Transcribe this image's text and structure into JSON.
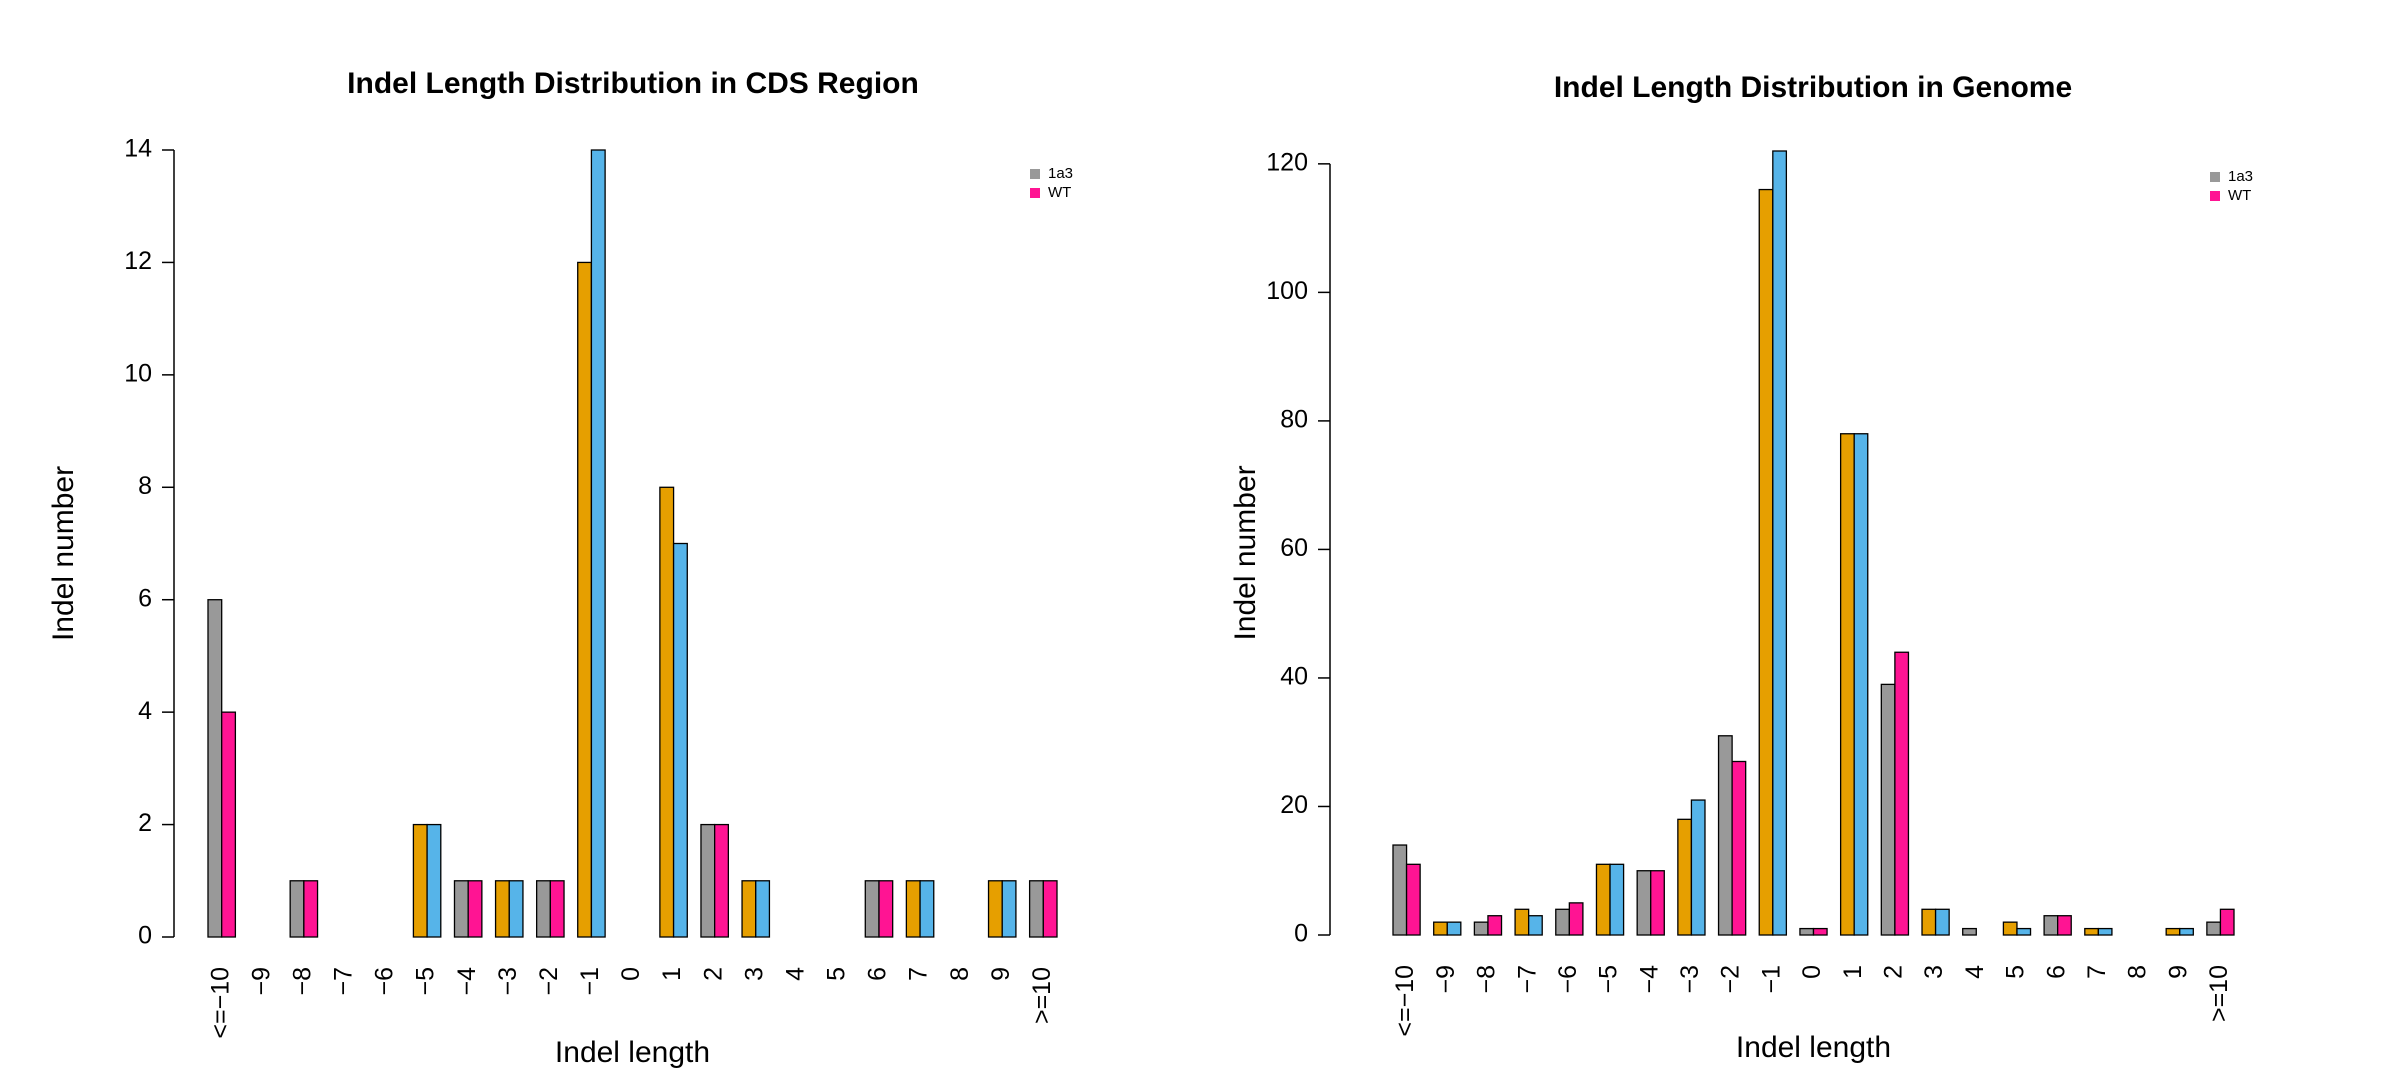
{
  "chart_data": [
    {
      "type": "bar",
      "title": "Indel Length Distribution in CDS Region",
      "x_label": "Indel length",
      "y_label": "Indel number",
      "categories": [
        "<=−10",
        "−9",
        "−8",
        "−7",
        "−6",
        "−5",
        "−4",
        "−3",
        "−2",
        "−1",
        "0",
        "1",
        "2",
        "3",
        "4",
        "5",
        "6",
        "7",
        "8",
        "9",
        ">=10"
      ],
      "series": [
        {
          "name": "1a3",
          "color": "#999999",
          "values": [
            6,
            0,
            1,
            0,
            0,
            2,
            1,
            1,
            1,
            12,
            0,
            8,
            2,
            1,
            0,
            0,
            1,
            1,
            0,
            1,
            1
          ]
        },
        {
          "name": "WT",
          "color": "#ff1493",
          "values": [
            4,
            0,
            1,
            0,
            0,
            2,
            1,
            1,
            1,
            14,
            0,
            7,
            2,
            1,
            0,
            0,
            1,
            1,
            0,
            1,
            1
          ]
        }
      ],
      "bar_colors": [
        "#999999",
        "#ff1493",
        "#e69f00",
        "#56b4e9"
      ],
      "ylim": [
        0,
        14
      ],
      "yticks": [
        0,
        2,
        4,
        6,
        8,
        10,
        12,
        14
      ],
      "legend": "top-right"
    },
    {
      "type": "bar",
      "title": "Indel Length Distribution in Genome",
      "x_label": "Indel length",
      "y_label": "Indel number",
      "categories": [
        "<=−10",
        "−9",
        "−8",
        "−7",
        "−6",
        "−5",
        "−4",
        "−3",
        "−2",
        "−1",
        "0",
        "1",
        "2",
        "3",
        "4",
        "5",
        "6",
        "7",
        "8",
        "9",
        ">=10"
      ],
      "series": [
        {
          "name": "1a3",
          "color": "#999999",
          "values": [
            14,
            2,
            2,
            4,
            4,
            11,
            10,
            18,
            31,
            116,
            1,
            78,
            39,
            4,
            1,
            2,
            3,
            1,
            0,
            1,
            2
          ]
        },
        {
          "name": "WT",
          "color": "#ff1493",
          "values": [
            11,
            2,
            3,
            3,
            5,
            11,
            10,
            21,
            27,
            122,
            1,
            78,
            44,
            4,
            0,
            1,
            3,
            1,
            0,
            1,
            4
          ]
        }
      ],
      "bar_colors": [
        "#999999",
        "#ff1493",
        "#e69f00",
        "#56b4e9"
      ],
      "ylim": [
        0,
        122
      ],
      "yticks": [
        0,
        20,
        40,
        60,
        80,
        100,
        120
      ],
      "legend": "top-right"
    }
  ]
}
